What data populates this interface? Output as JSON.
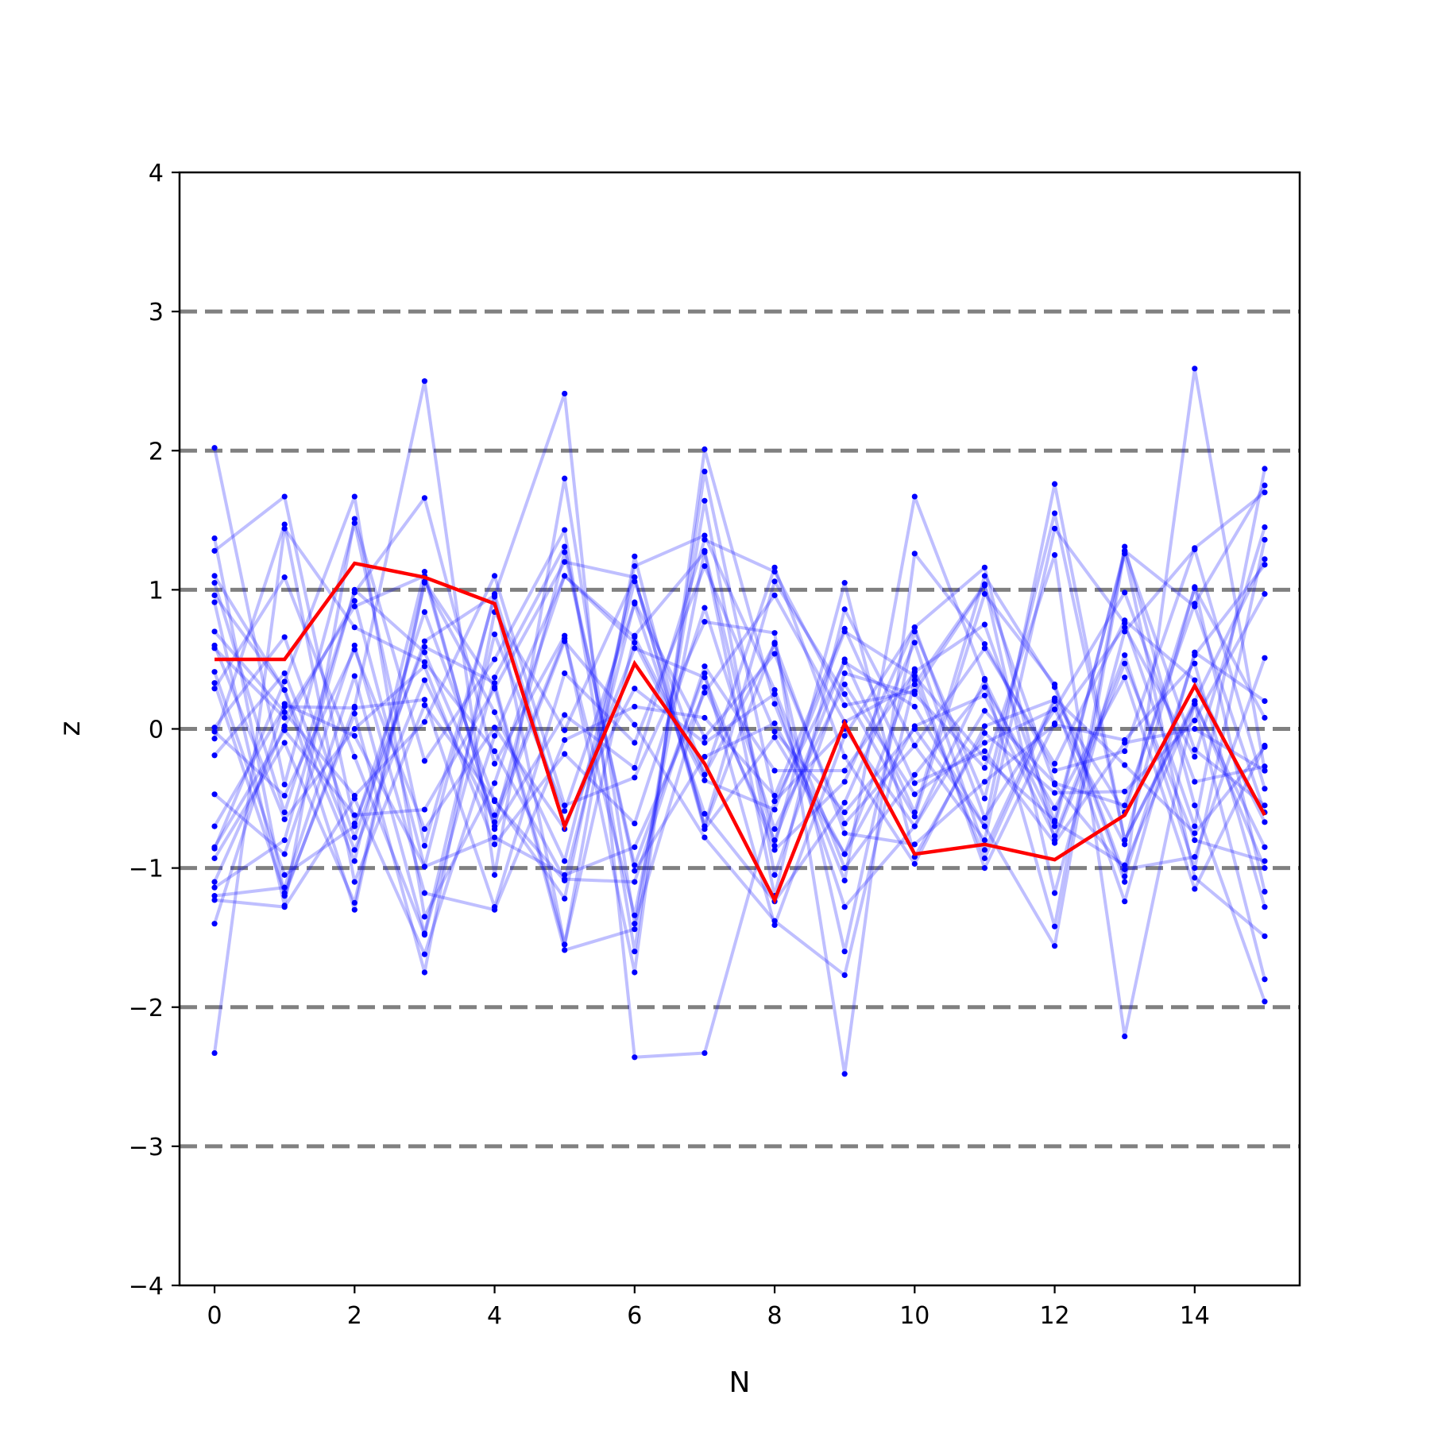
{
  "chart_data": {
    "type": "line",
    "title": "",
    "xlabel": "N",
    "ylabel": "z",
    "xlim": [
      -0.5,
      15.5
    ],
    "ylim": [
      -4,
      4
    ],
    "x_ticks": [
      "0",
      "2",
      "4",
      "6",
      "8",
      "10",
      "12",
      "14"
    ],
    "y_ticks": [
      "−4",
      "−3",
      "−2",
      "−1",
      "0",
      "1",
      "2",
      "3",
      "4"
    ],
    "reference_lines": [
      -3,
      -2,
      -1,
      0,
      1,
      2,
      3
    ],
    "grid": false,
    "x": [
      0,
      1,
      2,
      3,
      4,
      5,
      6,
      7,
      8,
      9,
      10,
      11,
      12,
      13,
      14,
      15
    ],
    "highlight": {
      "color": "#ff0000",
      "values": [
        0.5,
        0.5,
        1.19,
        1.09,
        0.9,
        -0.7,
        0.47,
        -0.25,
        -1.23,
        0.04,
        -0.9,
        -0.83,
        -0.94,
        -0.62,
        0.31,
        -0.62
      ]
    },
    "background_series_color": "#0000ff",
    "series": [
      {
        "values": [
          2.02,
          -0.4,
          1.48,
          -0.84,
          0.95,
          -1.55,
          1.24,
          -0.7,
          0.62,
          -1.6,
          0.7,
          -0.5,
          1.55,
          -0.8,
          0.2,
          1.22
        ]
      },
      {
        "values": [
          1.37,
          -1.2,
          0.16,
          2.5,
          -1.05,
          1.8,
          -1.4,
          0.3,
          -0.8,
          0.5,
          -0.6,
          1.1,
          0.3,
          -1.1,
          2.59,
          -0.3
        ]
      },
      {
        "values": [
          1.28,
          1.67,
          -0.68,
          0.59,
          0.33,
          -1.55,
          0.67,
          1.27,
          -1.2,
          0.86,
          -0.12,
          -0.8,
          1.44,
          0.76,
          -0.7,
          1.87
        ]
      },
      {
        "values": [
          1.05,
          -0.6,
          0.98,
          1.66,
          -0.25,
          0.67,
          -1.75,
          2.01,
          0.18,
          -1.09,
          1.67,
          0.36,
          -1.42,
          1.31,
          -0.55,
          -1.96
        ]
      },
      {
        "values": [
          0.96,
          0.28,
          -1.3,
          1.05,
          0.12,
          -0.95,
          1.06,
          -0.33,
          1.16,
          -0.2,
          -0.97,
          0.02,
          0.21,
          -0.6,
          1.01,
          0.08
        ]
      },
      {
        "values": [
          0.91,
          -1.27,
          1.51,
          -0.23,
          0.5,
          1.43,
          -1.6,
          1.85,
          -0.52,
          0.48,
          0.16,
          -0.7,
          -1.56,
          1.28,
          -0.15,
          -0.55
        ]
      },
      {
        "values": [
          0.7,
          0.12,
          -0.48,
          0.05,
          1.1,
          -0.55,
          -0.35,
          0.77,
          0.69,
          -2.48,
          1.26,
          0.61,
          -0.3,
          -0.16,
          1.3,
          1.7
        ]
      },
      {
        "values": [
          0.58,
          0.08,
          0.88,
          1.1,
          -0.7,
          1.27,
          -0.98,
          0.4,
          -1.41,
          -0.05,
          0.73,
          1.16,
          -0.8,
          0.47,
          -0.8,
          -0.95
        ]
      },
      {
        "values": [
          0.33,
          -1.18,
          0.11,
          -1.75,
          0.84,
          -0.01,
          1.09,
          -0.7,
          1.06,
          0.25,
          -0.63,
          0.97,
          0.32,
          -1.06,
          0.53,
          1.18
        ]
      },
      {
        "values": [
          0.29,
          1.09,
          -0.2,
          -1.48,
          0.37,
          1.31,
          -1.02,
          -0.2,
          0.04,
          -0.9,
          0.43,
          -1.0,
          0.04,
          0.73,
          -0.2,
          1.45
        ]
      },
      {
        "values": [
          0.01,
          0.66,
          -0.78,
          0.63,
          0.96,
          2.41,
          -2.36,
          -2.33,
          -0.52,
          0.0,
          -0.7,
          0.35,
          -0.7,
          1.28,
          0.88,
          -0.6
        ]
      },
      {
        "values": [
          -0.07,
          1.47,
          -1.1,
          0.17,
          -0.51,
          -1.22,
          1.17,
          1.39,
          0.28,
          -1.0,
          -0.33,
          0.3,
          -0.57,
          0.37,
          -1.15,
          -0.12
        ]
      },
      {
        "values": [
          -0.19,
          0.4,
          -0.87,
          0.35,
          -0.67,
          0.63,
          0.03,
          -0.78,
          -1.38,
          -1.77,
          0.35,
          -0.93,
          0.2,
          -1.24,
          0.55,
          0.2
        ]
      },
      {
        "values": [
          -0.47,
          -0.9,
          0.6,
          -1.18,
          -1.3,
          -0.08,
          0.16,
          0.08,
          -0.48,
          0.72,
          -0.39,
          -0.16,
          -0.82,
          -0.1,
          0.0,
          -0.3
        ]
      },
      {
        "values": [
          -0.7,
          0.16,
          0.15,
          0.21,
          -1.28,
          0.4,
          -0.1,
          1.17,
          -0.02,
          -0.6,
          0.0,
          -0.7,
          1.76,
          -0.8,
          0.18,
          -1.8
        ]
      },
      {
        "values": [
          -0.86,
          0.34,
          1.67,
          -1.35,
          -0.39,
          1.1,
          0.66,
          -0.33,
          0.61,
          -0.75,
          -0.83,
          -0.38,
          0.03,
          -0.08,
          0.47,
          -1.28
        ]
      },
      {
        "values": [
          -0.93,
          -0.1,
          -1.25,
          1.06,
          0.3,
          -1.59,
          -1.44,
          1.64,
          -1.05,
          0.4,
          0.25,
          -0.28,
          1.25,
          -2.21,
          0.2,
          -1.0
        ]
      },
      {
        "values": [
          -1.1,
          0.02,
          0.92,
          -0.99,
          -0.78,
          -1.05,
          -0.85,
          0.26,
          0.96,
          0.05,
          0.32,
          1.04,
          -1.18,
          0.7,
          1.29,
          -0.43
        ]
      },
      {
        "values": [
          -1.14,
          -0.8,
          1.0,
          0.55,
          -0.62,
          0.65,
          -1.34,
          1.28,
          -0.84,
          1.05,
          -0.92,
          -0.03,
          -0.46,
          -0.45,
          0.06,
          0.97
        ]
      },
      {
        "values": [
          -1.23,
          -1.28,
          -0.5,
          -1.62,
          -0.05,
          1.1,
          0.62,
          -0.37,
          -0.58,
          0.7,
          0.38,
          -0.21,
          -0.66,
          1.26,
          -1.07,
          -1.49
        ]
      },
      {
        "values": [
          -1.4,
          0.18,
          -0.05,
          -0.99,
          0.97,
          -0.68,
          0.29,
          -0.1,
          0.25,
          -1.28,
          -0.7,
          0.13,
          -0.39,
          -0.55,
          0.9,
          1.75
        ]
      },
      {
        "values": [
          -2.33,
          1.44,
          0.73,
          0.48,
          -0.16,
          -1.08,
          -1.1,
          0.45,
          -0.3,
          -0.3,
          0.41,
          0.75,
          -0.67,
          -0.98,
          0.18,
          -0.85
        ]
      },
      {
        "values": [
          -1.2,
          -1.14,
          0.38,
          -1.47,
          0.68,
          -0.59,
          0.9,
          -0.61,
          -1.24,
          -0.53,
          0.62,
          -0.87,
          0.22,
          -0.26,
          -0.75,
          -0.13
        ]
      },
      {
        "values": [
          -0.85,
          -0.01,
          -0.62,
          -0.58,
          0.29,
          1.2,
          1.09,
          -0.72,
          -0.06,
          -0.9,
          0.02,
          0.24,
          -0.77,
          0.53,
          -1.0,
          1.36
        ]
      },
      {
        "values": [
          0.6,
          -0.65,
          0.0,
          0.45,
          -0.83,
          -0.18,
          -0.68,
          0.87,
          -0.72,
          0.32,
          -0.47,
          -0.1,
          0.14,
          -0.83,
          1.02,
          -1.17
        ]
      },
      {
        "values": [
          1.1,
          0.28,
          -0.95,
          1.13,
          -0.72,
          0.1,
          -0.28,
          1.36,
          1.13,
          0.17,
          0.27,
          1.03,
          -0.4,
          -1.01,
          -0.92,
          0.51
        ]
      },
      {
        "values": [
          -0.02,
          -0.48,
          0.57,
          -0.72,
          0.01,
          -0.72,
          0.58,
          0.37,
          -0.87,
          -0.38,
          0.73,
          -0.64,
          0.14,
          0.98,
          -0.38,
          -0.27
        ]
      },
      {
        "values": [
          0.41,
          -1.05,
          -0.7,
          0.84,
          -0.52,
          -1.09,
          0.91,
          -0.06,
          0.54,
          -0.68,
          -0.12,
          0.58,
          -0.25,
          0.78,
          0.35,
          -0.67
        ]
      }
    ]
  }
}
